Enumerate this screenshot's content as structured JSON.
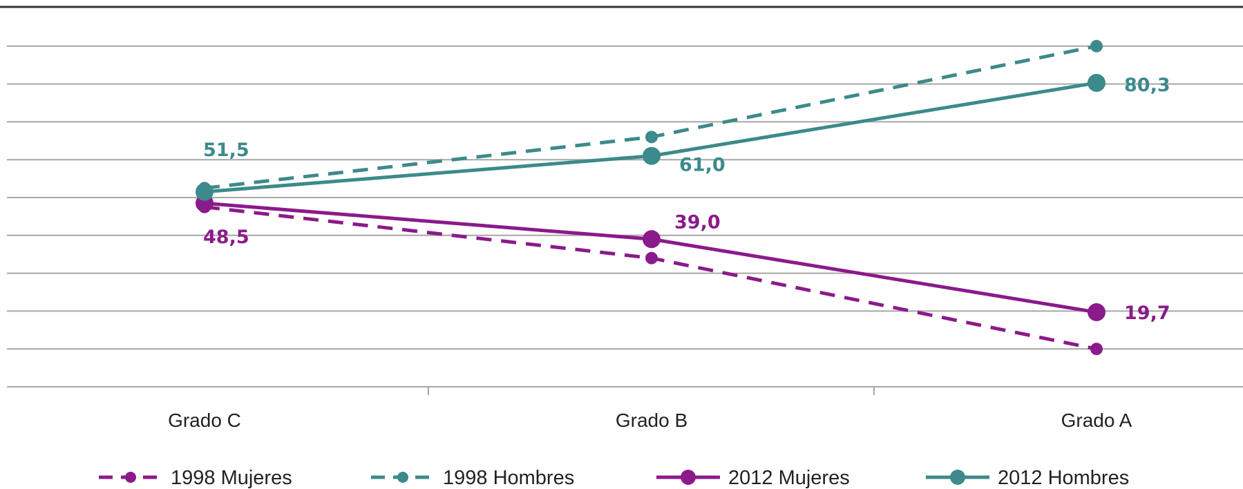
{
  "chart_data": {
    "type": "line",
    "categories": [
      "Grado C",
      "Grado B",
      "Grado A"
    ],
    "ylim": [
      0,
      100
    ],
    "grid": true,
    "legend_position": "bottom",
    "series": [
      {
        "name": "1998 Mujeres",
        "values": [
          47.5,
          34.0,
          10.0
        ],
        "color": "#8b1a8b",
        "style": "dashed",
        "labels": [
          "",
          "",
          ""
        ]
      },
      {
        "name": "1998 Hombres",
        "values": [
          52.5,
          66.0,
          90.0
        ],
        "color": "#3d8a8a",
        "style": "dashed",
        "labels": [
          "",
          "",
          ""
        ]
      },
      {
        "name": "2012 Mujeres",
        "values": [
          48.5,
          39.0,
          19.7
        ],
        "color": "#8b1a8b",
        "style": "solid",
        "labels": [
          "48,5",
          "39,0",
          "19,7"
        ]
      },
      {
        "name": "2012 Hombres",
        "values": [
          51.5,
          61.0,
          80.3
        ],
        "color": "#3d8a8a",
        "style": "solid",
        "labels": [
          "51,5",
          "61,0",
          "80,3"
        ]
      }
    ]
  }
}
